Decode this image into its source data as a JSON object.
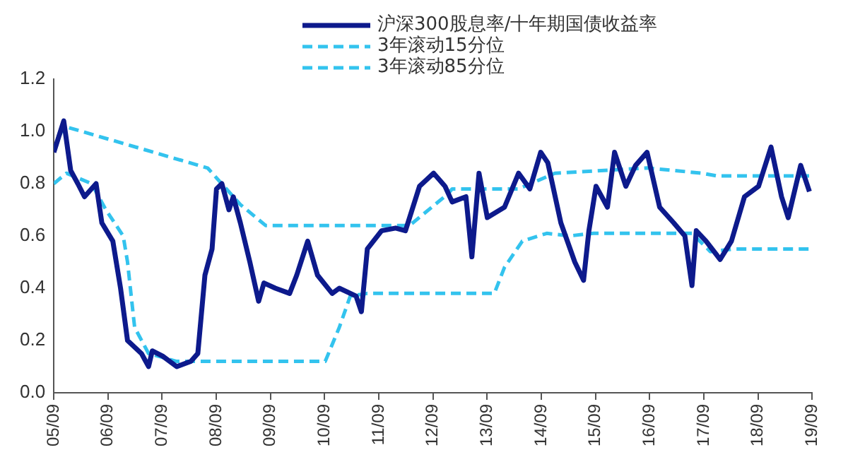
{
  "chart_data": {
    "type": "line",
    "legend": "top",
    "marker": "none",
    "grid": false,
    "xlim": [
      "2005-09",
      "2019-09"
    ],
    "xticks": [
      {
        "value": "2005-09",
        "label": "05/09"
      },
      {
        "value": "2006-09",
        "label": "06/09"
      },
      {
        "value": "2007-09",
        "label": "07/09"
      },
      {
        "value": "2008-09",
        "label": "08/09"
      },
      {
        "value": "2009-09",
        "label": "09/09"
      },
      {
        "value": "2010-09",
        "label": "10/09"
      },
      {
        "value": "2011-09",
        "label": "11/09"
      },
      {
        "value": "2012-09",
        "label": "12/09"
      },
      {
        "value": "2013-09",
        "label": "13/09"
      },
      {
        "value": "2014-09",
        "label": "14/09"
      },
      {
        "value": "2015-09",
        "label": "15/09"
      },
      {
        "value": "2016-09",
        "label": "16/09"
      },
      {
        "value": "2017-09",
        "label": "17/09"
      },
      {
        "value": "2018-09",
        "label": "18/09"
      },
      {
        "value": "2019-09",
        "label": "19/09"
      }
    ],
    "ylim": [
      0,
      1.2
    ],
    "yticks": [
      {
        "value": 0,
        "label": "0.0"
      },
      0.2,
      0.4,
      0.6,
      0.8,
      {
        "value": 1,
        "label": "1.0"
      },
      1.2
    ],
    "series": [
      {
        "name": "沪深300股息率/十年期国债收益率",
        "color": "#0d1a8c",
        "line_style": "solid",
        "x": [
          "2005-09-01",
          "2005-11-07",
          "2005-12-24",
          "2006-02-10",
          "2006-03-27",
          "2006-06-13",
          "2006-07-22",
          "2006-10-04",
          "2006-11-25",
          "2007-01-11",
          "2007-04-15",
          "2007-06-02",
          "2007-06-27",
          "2007-09-05",
          "2007-12-09",
          "2008-03-13",
          "2008-04-29",
          "2008-06-16",
          "2008-08-03",
          "2008-09-02",
          "2008-10-08",
          "2008-11-25",
          "2008-12-24",
          "2009-02-10",
          "2009-04-15",
          "2009-06-13",
          "2009-07-19",
          "2009-10-04",
          "2010-01-08",
          "2010-02-25",
          "2010-05-10",
          "2010-07-15",
          "2010-10-22",
          "2010-12-09",
          "2011-04-01",
          "2011-05-07",
          "2011-06-16",
          "2011-09-20",
          "2011-12-24",
          "2012-02-28",
          "2012-06-02",
          "2012-09-05",
          "2012-11-21",
          "2013-01-08",
          "2013-04-11",
          "2013-05-21",
          "2013-07-08",
          "2013-09-02",
          "2013-12-27",
          "2014-04-01",
          "2014-06-16",
          "2014-08-28",
          "2014-10-15",
          "2015-01-11",
          "2015-04-15",
          "2015-06-13",
          "2015-07-19",
          "2015-09-05",
          "2015-11-21",
          "2016-01-08",
          "2016-03-24",
          "2016-05-29",
          "2016-08-14",
          "2016-11-07",
          "2017-02-10",
          "2017-04-26",
          "2017-06-13",
          "2017-07-12",
          "2017-09-16",
          "2017-12-20",
          "2018-03-06",
          "2018-06-02",
          "2018-09-05",
          "2018-11-28",
          "2019-02-07",
          "2019-03-24",
          "2019-06-16",
          "2019-08-14"
        ],
        "values": [
          0.92,
          1.04,
          0.85,
          0.8,
          0.75,
          0.8,
          0.65,
          0.58,
          0.4,
          0.2,
          0.15,
          0.1,
          0.16,
          0.14,
          0.1,
          0.12,
          0.15,
          0.45,
          0.55,
          0.78,
          0.8,
          0.7,
          0.75,
          0.65,
          0.5,
          0.35,
          0.42,
          0.4,
          0.38,
          0.45,
          0.58,
          0.45,
          0.38,
          0.4,
          0.37,
          0.31,
          0.55,
          0.62,
          0.63,
          0.62,
          0.79,
          0.84,
          0.79,
          0.73,
          0.75,
          0.52,
          0.84,
          0.67,
          0.71,
          0.84,
          0.78,
          0.92,
          0.88,
          0.65,
          0.5,
          0.43,
          0.62,
          0.79,
          0.71,
          0.92,
          0.79,
          0.87,
          0.92,
          0.71,
          0.65,
          0.6,
          0.41,
          0.62,
          0.58,
          0.51,
          0.58,
          0.75,
          0.79,
          0.94,
          0.75,
          0.67,
          0.87,
          0.77
        ]
      },
      {
        "name": "3年滚动15分位",
        "color": "#33c3ee",
        "line_style": "dashed",
        "x": [
          "2005-09-01",
          "2005-11-25",
          "2006-05-14",
          "2006-08-18",
          "2006-12-13",
          "2007-01-11",
          "2007-02-28",
          "2007-06-02",
          "2007-12-09",
          "2010-09-05",
          "2010-12-09",
          "2011-02-21",
          "2011-06-16",
          "2013-10-19",
          "2013-12-27",
          "2014-04-26",
          "2014-10-08",
          "2015-03-09",
          "2015-08-18",
          "2017-06-13",
          "2017-10-15",
          "2018-03-27",
          "2019-09-01"
        ],
        "values": [
          0.8,
          0.84,
          0.8,
          0.7,
          0.6,
          0.5,
          0.25,
          0.15,
          0.12,
          0.12,
          0.25,
          0.37,
          0.38,
          0.38,
          0.48,
          0.58,
          0.61,
          0.6,
          0.61,
          0.61,
          0.54,
          0.55,
          0.55
        ]
      },
      {
        "name": "3年滚动85分位",
        "color": "#33c3ee",
        "line_style": "dashed",
        "x": [
          "2005-09-01",
          "2005-11-07",
          "2008-07-04",
          "2009-02-10",
          "2009-07-30",
          "2012-03-27",
          "2012-12-09",
          "2013-01-08",
          "2014-04-01",
          "2014-12-02",
          "2016-08-14",
          "2017-08-21",
          "2017-11-25",
          "2019-09-01"
        ],
        "values": [
          0.93,
          1.02,
          0.86,
          0.72,
          0.64,
          0.64,
          0.76,
          0.78,
          0.78,
          0.84,
          0.86,
          0.84,
          0.83,
          0.83
        ]
      }
    ]
  }
}
